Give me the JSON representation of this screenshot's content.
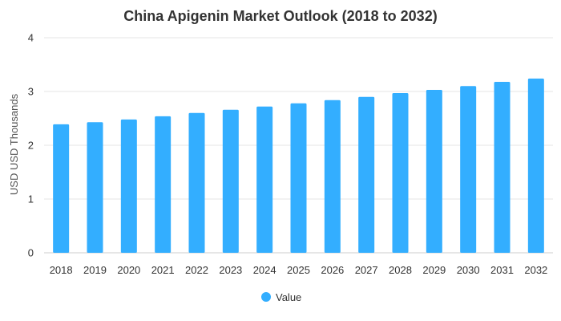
{
  "chart_data": {
    "type": "bar",
    "title": "China Apigenin Market Outlook (2018 to 2032)",
    "xlabel": "",
    "ylabel": "USD USD Thousands",
    "categories": [
      "2018",
      "2019",
      "2020",
      "2021",
      "2022",
      "2023",
      "2024",
      "2025",
      "2026",
      "2027",
      "2028",
      "2029",
      "2030",
      "2031",
      "2032"
    ],
    "series": [
      {
        "name": "Value",
        "values": [
          2.39,
          2.43,
          2.48,
          2.54,
          2.6,
          2.66,
          2.72,
          2.78,
          2.84,
          2.9,
          2.97,
          3.03,
          3.1,
          3.18,
          3.24
        ]
      }
    ],
    "ylim": [
      0,
      4
    ],
    "yticks": [
      "0",
      "1",
      "2",
      "3",
      "4"
    ],
    "grid": true,
    "legend_position": "bottom-center",
    "bar_color": "#33aeff"
  }
}
